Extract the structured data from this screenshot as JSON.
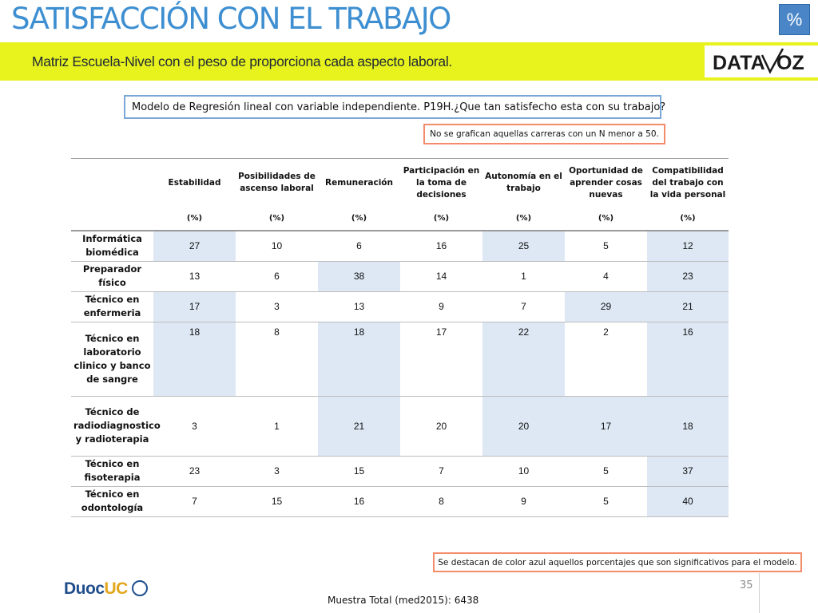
{
  "header": {
    "title": "SATISFACCIÓN CON EL TRABAJO",
    "percent_badge": "%",
    "subtitle": "Matriz Escuela-Nivel con el peso de proporciona cada aspecto laboral.",
    "band_color": "#e8f21c",
    "title_color": "#3d8fd1"
  },
  "brand": {
    "datavoz_logo_text": "DATAVOZ",
    "duoc_logo_text_a": "Duoc",
    "duoc_logo_text_b": "UC"
  },
  "model_label": "Modelo de Regresión lineal con variable independiente. P19H.¿Que tan satisfecho esta con su trabajo?",
  "note_n50": "No se grafican aquellas carreras con un N menor a 50.",
  "table": {
    "columns": [
      "Estabilidad",
      "Posibilidades de ascenso laboral",
      "Remuneración",
      "Participación en la toma de decisiones",
      "Autonomía en el trabajo",
      "Oportunidad de aprender cosas nuevas",
      "Compatibilidad del trabajo con la vida personal"
    ],
    "units": [
      "(%)",
      "(%)",
      "(%)",
      "(%)",
      "(%)",
      "(%)",
      "(%)"
    ],
    "highlight_color": "#dde8f4",
    "rows": [
      {
        "label": "Informática biomédica",
        "values": [
          "27",
          "10",
          "6",
          "16",
          "25",
          "5",
          "12"
        ],
        "highlight": [
          true,
          false,
          false,
          false,
          true,
          false,
          true
        ]
      },
      {
        "label": "Preparador físico",
        "values": [
          "13",
          "6",
          "38",
          "14",
          "1",
          "4",
          "23"
        ],
        "highlight": [
          false,
          false,
          true,
          false,
          false,
          false,
          true
        ]
      },
      {
        "label": "Técnico en enfermeria",
        "values": [
          "17",
          "3",
          "13",
          "9",
          "7",
          "29",
          "21"
        ],
        "highlight": [
          true,
          false,
          false,
          false,
          false,
          true,
          true
        ]
      },
      {
        "label": "Técnico en laboratorio clinico y banco de sangre",
        "values": [
          "18",
          "8",
          "18",
          "17",
          "22",
          "2",
          "16"
        ],
        "highlight": [
          true,
          false,
          true,
          false,
          true,
          false,
          true
        ]
      },
      {
        "label": "Técnico de radiodiagnostico y radioterapia",
        "values": [
          "3",
          "1",
          "21",
          "20",
          "20",
          "17",
          "18"
        ],
        "highlight": [
          false,
          false,
          true,
          false,
          true,
          true,
          true
        ]
      },
      {
        "label": "Técnico en fisoterapia",
        "values": [
          "23",
          "3",
          "15",
          "7",
          "10",
          "5",
          "37"
        ],
        "highlight": [
          false,
          false,
          false,
          false,
          false,
          false,
          true
        ]
      },
      {
        "label": "Técnico en odontología",
        "values": [
          "7",
          "15",
          "16",
          "8",
          "9",
          "5",
          "40"
        ],
        "highlight": [
          false,
          false,
          false,
          false,
          false,
          false,
          true
        ]
      }
    ]
  },
  "blue_note": "Se destacan de color azul aquellos porcentajes que son significativos para el modelo.",
  "page_number": "35",
  "sample": "Muestra Total (med2015): 6438"
}
